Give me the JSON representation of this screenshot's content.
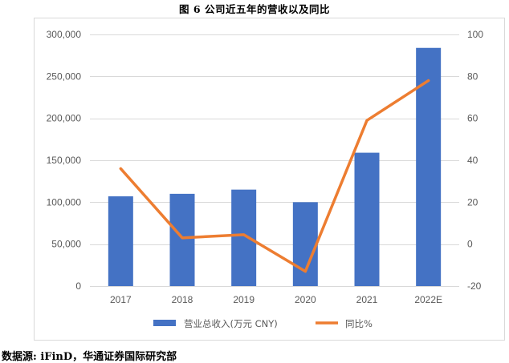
{
  "title": "图 6 公司近五年的营收以及同比",
  "source": "数据源: iFinD，华通证券国际研究部",
  "colors": {
    "bar": "#4472C4",
    "line": "#ED7D31",
    "grid": "#d9d9d9",
    "tick": "#595959"
  },
  "chart_data": {
    "type": "bar",
    "categories": [
      "2017",
      "2018",
      "2019",
      "2020",
      "2021",
      "2022E"
    ],
    "series": [
      {
        "name": "营业总收入(万元 CNY)",
        "type": "bar",
        "axis": "left",
        "values": [
          107000,
          110000,
          115000,
          100000,
          159000,
          284000
        ]
      },
      {
        "name": "同比%",
        "type": "line",
        "axis": "right",
        "values": [
          36,
          3,
          4.5,
          -13,
          59,
          78
        ]
      }
    ],
    "left_axis": {
      "min": 0,
      "max": 300000,
      "step": 50000,
      "tick_labels": [
        "0",
        "50,000",
        "100,000",
        "150,000",
        "200,000",
        "250,000",
        "300,000"
      ]
    },
    "right_axis": {
      "min": -20,
      "max": 100,
      "step": 20,
      "tick_labels": [
        "-20",
        "0",
        "20",
        "40",
        "60",
        "80",
        "100"
      ]
    },
    "grid": true,
    "legend_position": "bottom"
  }
}
